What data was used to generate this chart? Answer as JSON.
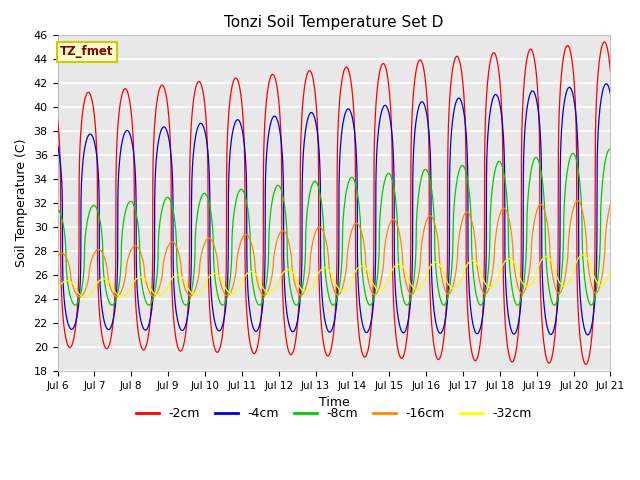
{
  "title": "Tonzi Soil Temperature Set D",
  "xlabel": "Time",
  "ylabel": "Soil Temperature (C)",
  "ylim": [
    18,
    46
  ],
  "yticks": [
    18,
    20,
    22,
    24,
    26,
    28,
    30,
    32,
    34,
    36,
    38,
    40,
    42,
    44,
    46
  ],
  "x_start_day": 6,
  "x_end_day": 21,
  "xtick_days": [
    6,
    7,
    8,
    9,
    10,
    11,
    12,
    13,
    14,
    15,
    16,
    17,
    18,
    19,
    20,
    21
  ],
  "colors": {
    "-2cm": "#ff0000",
    "-4cm": "#0000dd",
    "-8cm": "#00cc00",
    "-16cm": "#ff8800",
    "-32cm": "#ffff00"
  },
  "annotation_text": "TZ_fmet",
  "annotation_color": "#880000",
  "annotation_bg": "#ffffcc",
  "annotation_edge": "#cccc00",
  "bg_color": "#e8e8e8",
  "grid_color": "#ffffff",
  "n_points": 7200,
  "period_hours": 24,
  "layers": [
    "-2cm",
    "-4cm",
    "-8cm",
    "-16cm",
    "-32cm"
  ],
  "amp_start": {
    "-2cm": 10.5,
    "-4cm": 8.0,
    "-8cm": 4.0,
    "-16cm": 1.8,
    "-32cm": 0.7
  },
  "amp_end": {
    "-2cm": 13.5,
    "-4cm": 10.5,
    "-8cm": 6.5,
    "-16cm": 4.0,
    "-32cm": 1.3
  },
  "mean_start": {
    "-2cm": 30.5,
    "-4cm": 29.5,
    "-8cm": 27.5,
    "-16cm": 26.0,
    "-32cm": 24.8
  },
  "mean_end": {
    "-2cm": 32.0,
    "-4cm": 31.5,
    "-8cm": 30.0,
    "-16cm": 28.5,
    "-32cm": 26.5
  },
  "phase_lags_hours": {
    "-2cm": 0.0,
    "-4cm": 1.2,
    "-8cm": 3.5,
    "-16cm": 6.5,
    "-32cm": 10.0
  },
  "sharpness": {
    "-2cm": 0.3,
    "-4cm": 0.3,
    "-8cm": 0.5,
    "-16cm": 0.65,
    "-32cm": 0.75
  }
}
